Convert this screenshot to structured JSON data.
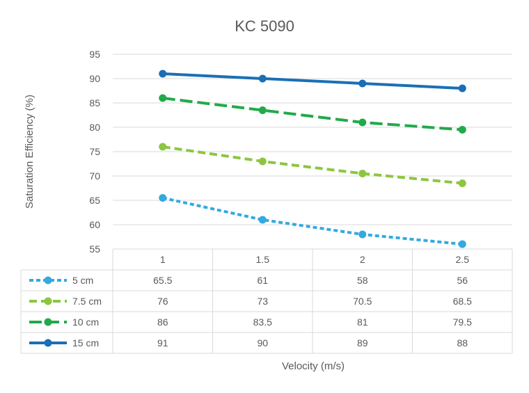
{
  "chart_data": {
    "type": "line",
    "title": "KC 5090",
    "xlabel": "Velocity (m/s)",
    "ylabel": "Saturation Efficiency (%)",
    "ylim": [
      55,
      95
    ],
    "yticks": [
      55,
      60,
      65,
      70,
      75,
      80,
      85,
      90,
      95
    ],
    "categories": [
      "1",
      "1.5",
      "2",
      "2.5"
    ],
    "grid": true,
    "legend": "data-table",
    "series": [
      {
        "name": "5 cm",
        "values": [
          65.5,
          61,
          58,
          56
        ],
        "color": "#33A9E0",
        "dash": "short-dash"
      },
      {
        "name": "7.5 cm",
        "values": [
          76,
          73,
          70.5,
          68.5
        ],
        "color": "#8CC63F",
        "dash": "dash"
      },
      {
        "name": "10 cm",
        "values": [
          86,
          83.5,
          81,
          79.5
        ],
        "color": "#21AA4A",
        "dash": "long-dash"
      },
      {
        "name": "15 cm",
        "values": [
          91,
          90,
          89,
          88
        ],
        "color": "#1A6FB5",
        "dash": "solid"
      }
    ]
  }
}
